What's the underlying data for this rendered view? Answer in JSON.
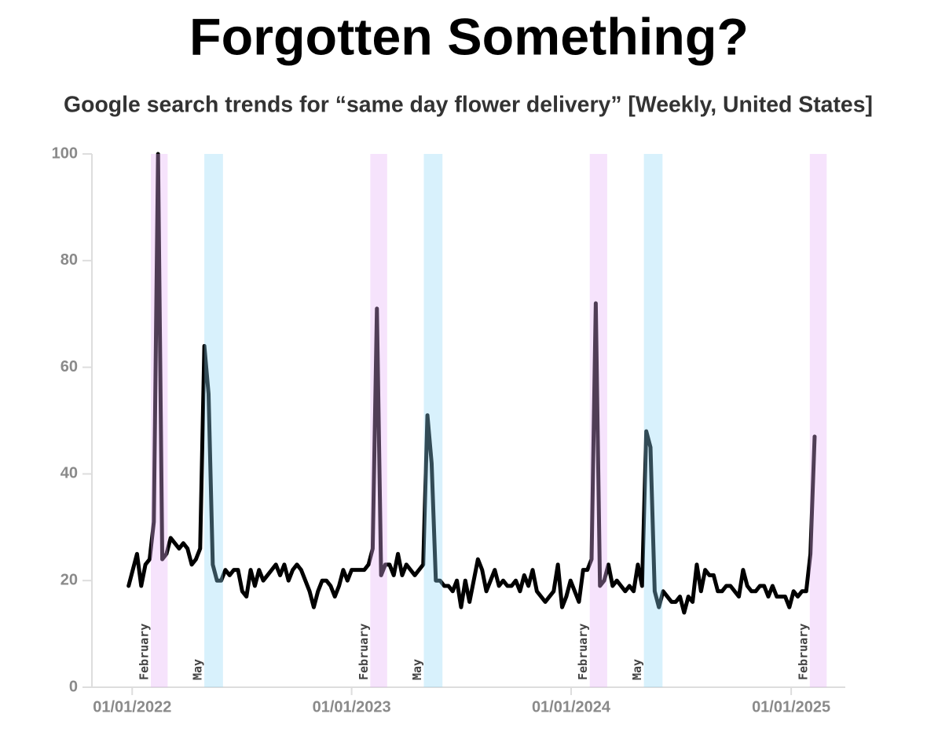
{
  "chart_data": {
    "type": "line",
    "title": "Forgotten Something?",
    "subtitle": "Google search trends for “same day flower delivery” [Weekly, United States]",
    "x": [
      "2021-12-26",
      "2022-01-02",
      "2022-01-09",
      "2022-01-16",
      "2022-01-23",
      "2022-01-30",
      "2022-02-06",
      "2022-02-13",
      "2022-02-20",
      "2022-02-27",
      "2022-03-06",
      "2022-03-13",
      "2022-03-20",
      "2022-03-27",
      "2022-04-03",
      "2022-04-10",
      "2022-04-17",
      "2022-04-24",
      "2022-05-01",
      "2022-05-08",
      "2022-05-15",
      "2022-05-22",
      "2022-05-29",
      "2022-06-05",
      "2022-06-12",
      "2022-06-19",
      "2022-06-26",
      "2022-07-03",
      "2022-07-10",
      "2022-07-17",
      "2022-07-24",
      "2022-07-31",
      "2022-08-07",
      "2022-08-14",
      "2022-08-21",
      "2022-08-28",
      "2022-09-04",
      "2022-09-11",
      "2022-09-18",
      "2022-09-25",
      "2022-10-02",
      "2022-10-09",
      "2022-10-16",
      "2022-10-23",
      "2022-10-30",
      "2022-11-06",
      "2022-11-13",
      "2022-11-20",
      "2022-11-27",
      "2022-12-04",
      "2022-12-11",
      "2022-12-18",
      "2022-12-25",
      "2023-01-01",
      "2023-01-08",
      "2023-01-15",
      "2023-01-22",
      "2023-01-29",
      "2023-02-05",
      "2023-02-12",
      "2023-02-19",
      "2023-02-26",
      "2023-03-05",
      "2023-03-12",
      "2023-03-19",
      "2023-03-26",
      "2023-04-02",
      "2023-04-09",
      "2023-04-16",
      "2023-04-23",
      "2023-04-30",
      "2023-05-07",
      "2023-05-14",
      "2023-05-21",
      "2023-05-28",
      "2023-06-04",
      "2023-06-11",
      "2023-06-18",
      "2023-06-25",
      "2023-07-02",
      "2023-07-09",
      "2023-07-16",
      "2023-07-23",
      "2023-07-30",
      "2023-08-06",
      "2023-08-13",
      "2023-08-20",
      "2023-08-27",
      "2023-09-03",
      "2023-09-10",
      "2023-09-17",
      "2023-09-24",
      "2023-10-01",
      "2023-10-08",
      "2023-10-15",
      "2023-10-22",
      "2023-10-29",
      "2023-11-05",
      "2023-11-12",
      "2023-11-19",
      "2023-11-26",
      "2023-12-03",
      "2023-12-10",
      "2023-12-17",
      "2023-12-24",
      "2023-12-31",
      "2024-01-07",
      "2024-01-14",
      "2024-01-21",
      "2024-01-28",
      "2024-02-04",
      "2024-02-11",
      "2024-02-18",
      "2024-02-25",
      "2024-03-03",
      "2024-03-10",
      "2024-03-17",
      "2024-03-24",
      "2024-03-31",
      "2024-04-07",
      "2024-04-14",
      "2024-04-21",
      "2024-04-28",
      "2024-05-05",
      "2024-05-12",
      "2024-05-19",
      "2024-05-26",
      "2024-06-02",
      "2024-06-09",
      "2024-06-16",
      "2024-06-23",
      "2024-06-30",
      "2024-07-07",
      "2024-07-14",
      "2024-07-21",
      "2024-07-28",
      "2024-08-04",
      "2024-08-11",
      "2024-08-18",
      "2024-08-25",
      "2024-09-01",
      "2024-09-08",
      "2024-09-15",
      "2024-09-22",
      "2024-09-29",
      "2024-10-06",
      "2024-10-13",
      "2024-10-20",
      "2024-10-27",
      "2024-11-03",
      "2024-11-10",
      "2024-11-17",
      "2024-11-24",
      "2024-12-01",
      "2024-12-08",
      "2024-12-15",
      "2024-12-22",
      "2024-12-29",
      "2025-01-05",
      "2025-01-12",
      "2025-01-19",
      "2025-01-26",
      "2025-02-02",
      "2025-02-09"
    ],
    "values": [
      19,
      22,
      25,
      19,
      23,
      24,
      31,
      100,
      24,
      25,
      28,
      27,
      26,
      27,
      26,
      23,
      24,
      26,
      64,
      55,
      23,
      20,
      20,
      22,
      21,
      22,
      22,
      18,
      17,
      22,
      19,
      22,
      20,
      21,
      22,
      23,
      21,
      23,
      20,
      22,
      23,
      22,
      20,
      18,
      15,
      18,
      20,
      20,
      19,
      17,
      19,
      22,
      20,
      22,
      22,
      22,
      22,
      23,
      26,
      71,
      21,
      23,
      23,
      21,
      25,
      21,
      23,
      22,
      21,
      22,
      23,
      51,
      42,
      20,
      20,
      19,
      19,
      18,
      20,
      15,
      20,
      16,
      20,
      24,
      22,
      18,
      20,
      22,
      19,
      20,
      19,
      19,
      20,
      18,
      21,
      19,
      22,
      18,
      17,
      16,
      17,
      18,
      23,
      15,
      17,
      20,
      18,
      16,
      22,
      22,
      24,
      72,
      19,
      20,
      23,
      19,
      20,
      19,
      18,
      19,
      18,
      23,
      19,
      48,
      45,
      18,
      15,
      18,
      17,
      16,
      16,
      17,
      14,
      17,
      16,
      23,
      18,
      22,
      21,
      21,
      18,
      18,
      19,
      19,
      18,
      17,
      22,
      19,
      18,
      18,
      19,
      19,
      17,
      19,
      17,
      17,
      17,
      15,
      18,
      17,
      18,
      18,
      25,
      47
    ],
    "color": "#000000",
    "xlim": [
      "2021-10-26",
      "2025-04-01"
    ],
    "xticks": [
      {
        "value": "2022-01-01",
        "label": "01/01/2022"
      },
      {
        "value": "2023-01-01",
        "label": "01/01/2023"
      },
      {
        "value": "2024-01-01",
        "label": "01/01/2024"
      },
      {
        "value": "2025-01-01",
        "label": "01/01/2025"
      }
    ],
    "ylim": [
      0,
      100
    ],
    "yticks": [
      0,
      20,
      40,
      60,
      80,
      100
    ],
    "bands": [
      {
        "label": "February",
        "start": "2022-02-01",
        "end": "2022-03-01",
        "color": "#e4b0f5"
      },
      {
        "label": "May",
        "start": "2022-05-01",
        "end": "2022-06-01",
        "color": "#8fd8f5"
      },
      {
        "label": "February",
        "start": "2023-02-01",
        "end": "2023-03-01",
        "color": "#e4b0f5"
      },
      {
        "label": "May",
        "start": "2023-05-01",
        "end": "2023-06-01",
        "color": "#8fd8f5"
      },
      {
        "label": "February",
        "start": "2024-02-01",
        "end": "2024-03-01",
        "color": "#e4b0f5"
      },
      {
        "label": "May",
        "start": "2024-05-01",
        "end": "2024-06-01",
        "color": "#8fd8f5"
      },
      {
        "label": "February",
        "start": "2025-02-01",
        "end": "2025-03-01",
        "color": "#e4b0f5"
      }
    ]
  }
}
